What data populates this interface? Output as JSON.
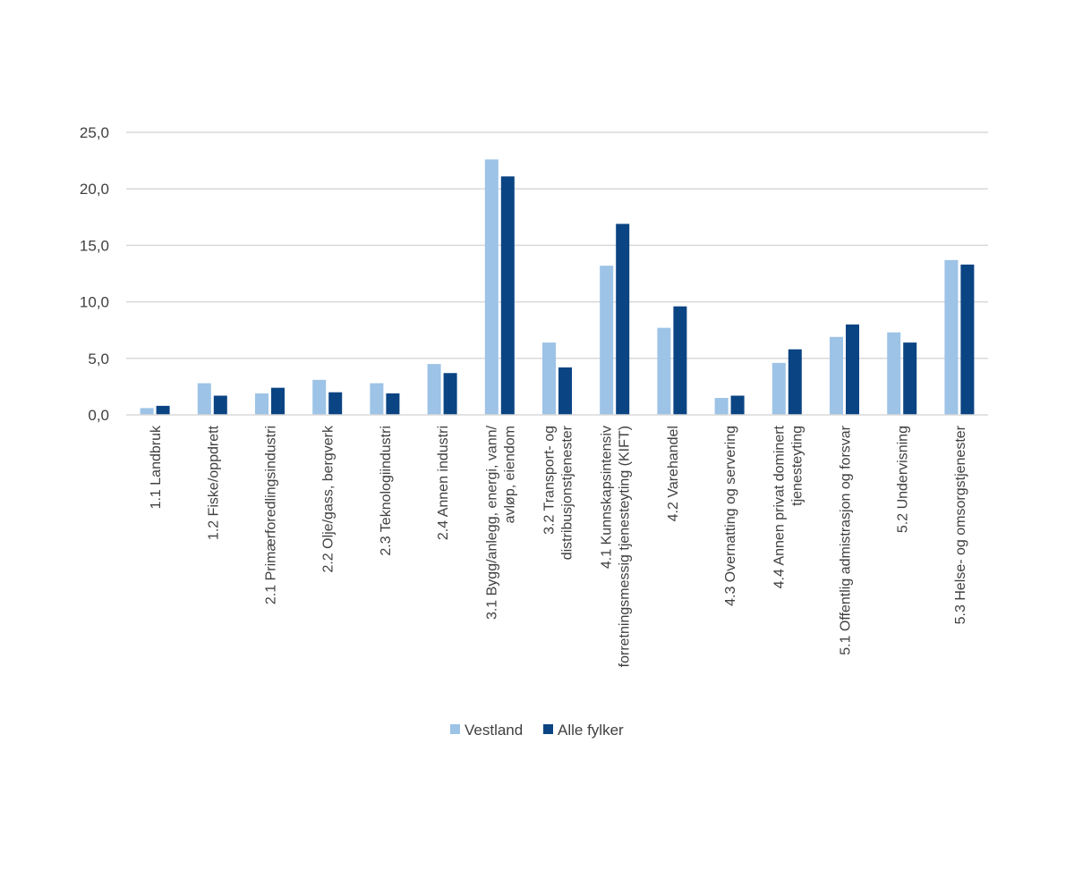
{
  "chart_data": {
    "type": "bar",
    "title": "",
    "xlabel": "",
    "ylabel": "",
    "ylim": [
      0,
      25
    ],
    "yticks": [
      "0,0",
      "5,0",
      "10,0",
      "15,0",
      "20,0",
      "25,0"
    ],
    "grid": true,
    "legend_position": "bottom",
    "categories": [
      [
        "1.1 Landbruk"
      ],
      [
        "1.2 Fiske/oppdrett"
      ],
      [
        "2.1 Primærforedlingsindustri"
      ],
      [
        "2.2 Olje/gass, bergverk"
      ],
      [
        "2.3 Teknologiindustri"
      ],
      [
        "2.4 Annen industri"
      ],
      [
        "3.1 Bygg/anlegg, energi, vann/",
        "avløp, eiendom"
      ],
      [
        "3.2 Transport- og",
        "distribusjonstjenester"
      ],
      [
        "4.1 Kunnskapsintensiv",
        "forretningsmessig tjenesteyting (KIFT)"
      ],
      [
        "4.2 Varehandel"
      ],
      [
        "4.3 Overnatting og servering"
      ],
      [
        "4.4 Annen privat dominert",
        "tjenesteyting"
      ],
      [
        "5.1 Offentlig admistrasjon og forsvar"
      ],
      [
        "5.2 Undervisning"
      ],
      [
        "5.3 Helse- og omsorgstjenester"
      ]
    ],
    "series": [
      {
        "name": "Vestland",
        "color": "#9dc3e6",
        "values": [
          0.6,
          2.8,
          1.9,
          3.1,
          2.8,
          4.5,
          22.6,
          6.4,
          13.2,
          7.7,
          1.5,
          4.6,
          6.9,
          7.3,
          13.7
        ]
      },
      {
        "name": "Alle fylker",
        "color": "#0b4483",
        "values": [
          0.8,
          1.7,
          2.4,
          2.0,
          1.9,
          3.7,
          21.1,
          4.2,
          16.9,
          9.6,
          1.7,
          5.8,
          8.0,
          6.4,
          13.3
        ]
      }
    ]
  }
}
